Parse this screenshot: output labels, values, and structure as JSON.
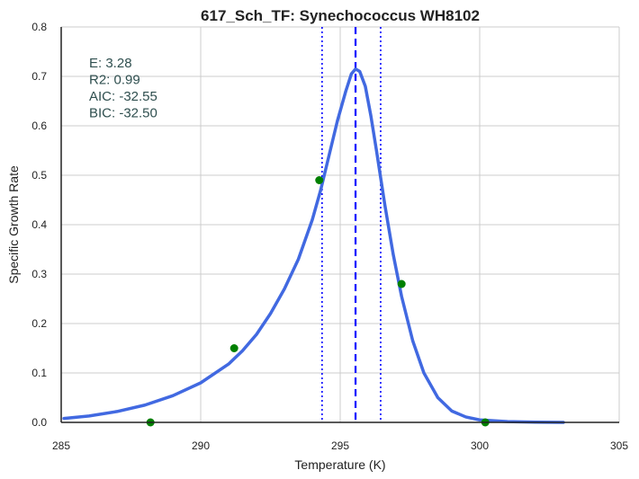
{
  "chart_data": {
    "type": "line",
    "title": "617_Sch_TF: Synechococcus WH8102",
    "xlabel": "Temperature (K)",
    "ylabel": "Specific Growth Rate",
    "xlim": [
      285,
      305
    ],
    "ylim": [
      0,
      0.8
    ],
    "xticks": [
      285,
      290,
      295,
      300,
      305
    ],
    "yticks": [
      0.0,
      0.1,
      0.2,
      0.3,
      0.4,
      0.5,
      0.6,
      0.7,
      0.8
    ],
    "grid": true,
    "annotations": [
      "E:  3.28",
      "R2:  0.99",
      "AIC: -32.55",
      "BIC: -32.50"
    ],
    "vlines": [
      {
        "name": "peak",
        "x": 295.55,
        "style": "dashed",
        "color": "#0000ff"
      },
      {
        "name": "lower-bound",
        "x": 294.35,
        "style": "dotted",
        "color": "#0000ff"
      },
      {
        "name": "upper-bound",
        "x": 296.45,
        "style": "dotted",
        "color": "#0000ff"
      }
    ],
    "series": [
      {
        "name": "fit",
        "kind": "line",
        "color": "#4169e1",
        "x": [
          285.1,
          286.0,
          287.0,
          288.0,
          289.0,
          290.0,
          291.0,
          291.5,
          292.0,
          292.5,
          293.0,
          293.5,
          294.0,
          294.3,
          294.6,
          294.9,
          295.2,
          295.4,
          295.55,
          295.7,
          295.9,
          296.1,
          296.3,
          296.6,
          296.9,
          297.2,
          297.6,
          298.0,
          298.5,
          299.0,
          299.5,
          300.0,
          301.0,
          302.0,
          303.0
        ],
        "y": [
          0.008,
          0.013,
          0.022,
          0.035,
          0.054,
          0.08,
          0.118,
          0.145,
          0.178,
          0.22,
          0.27,
          0.33,
          0.41,
          0.47,
          0.54,
          0.61,
          0.67,
          0.705,
          0.715,
          0.71,
          0.68,
          0.62,
          0.55,
          0.44,
          0.34,
          0.255,
          0.165,
          0.1,
          0.05,
          0.023,
          0.011,
          0.005,
          0.0015,
          0.0005,
          0.0001
        ]
      },
      {
        "name": "observed",
        "kind": "scatter",
        "color": "#008000",
        "x": [
          288.2,
          291.2,
          294.25,
          297.2,
          300.2
        ],
        "y": [
          0.0,
          0.15,
          0.49,
          0.28,
          0.0
        ]
      }
    ]
  }
}
